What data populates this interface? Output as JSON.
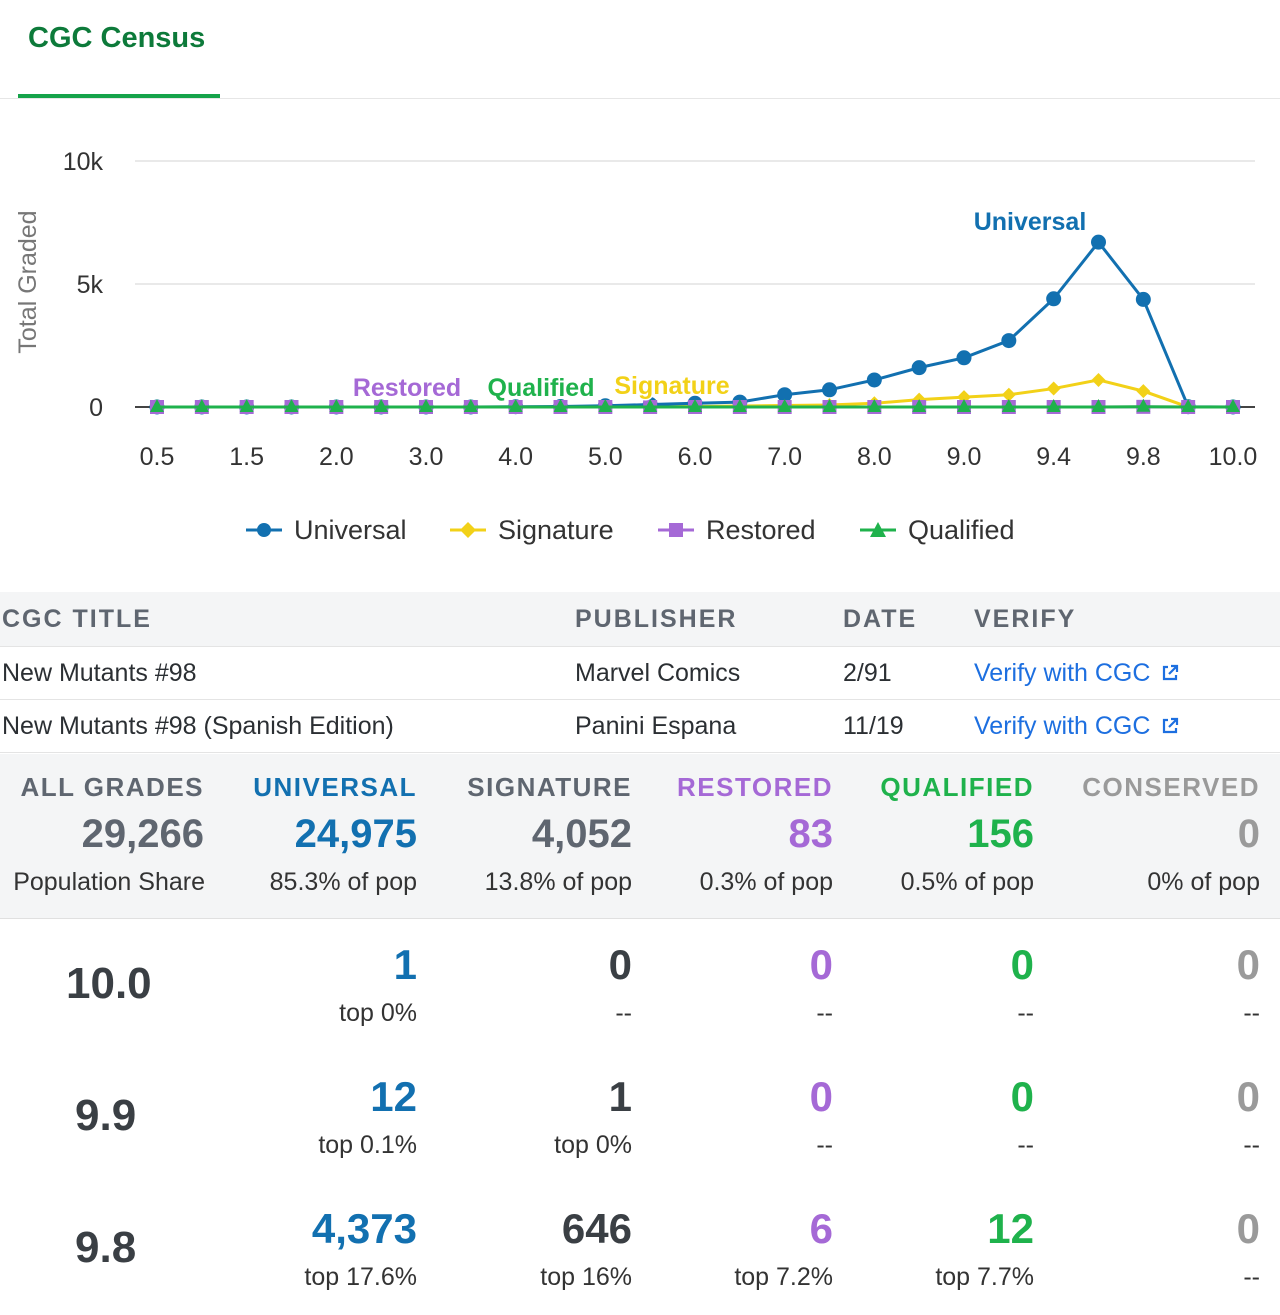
{
  "tab": {
    "label": "CGC Census"
  },
  "colors": {
    "universal": "#1270b0",
    "signature": "#f2d118",
    "restored": "#a569d6",
    "qualified": "#1fb24c",
    "conserved": "#9a9a9a",
    "dark": "#3a3f44"
  },
  "chart_data": {
    "type": "line",
    "ylabel": "Total Graded",
    "y_ticks": [
      "10k",
      "5k",
      "0"
    ],
    "ylim": [
      0,
      10000
    ],
    "x_tick_labels": [
      "0.5",
      "1.5",
      "2.0",
      "3.0",
      "4.0",
      "5.0",
      "6.0",
      "7.0",
      "8.0",
      "9.0",
      "9.4",
      "9.8",
      "10.0"
    ],
    "grades": [
      "0.5",
      "1.0",
      "1.5",
      "1.8",
      "2.0",
      "2.5",
      "3.0",
      "3.5",
      "4.0",
      "4.5",
      "5.0",
      "5.5",
      "6.0",
      "6.5",
      "7.0",
      "7.5",
      "8.0",
      "8.5",
      "9.0",
      "9.2",
      "9.4",
      "9.6",
      "9.8",
      "9.9",
      "10.0"
    ],
    "series": [
      {
        "name": "Universal",
        "values": [
          0,
          0,
          0,
          0,
          0,
          0,
          0,
          0,
          10,
          20,
          50,
          100,
          150,
          200,
          500,
          700,
          1100,
          1600,
          2000,
          2700,
          4400,
          6700,
          4373,
          12,
          1
        ]
      },
      {
        "name": "Signature",
        "values": [
          0,
          0,
          0,
          0,
          0,
          0,
          0,
          0,
          0,
          0,
          0,
          10,
          20,
          40,
          60,
          80,
          150,
          300,
          400,
          500,
          750,
          1100,
          646,
          1,
          0
        ]
      },
      {
        "name": "Restored",
        "values": [
          0,
          0,
          0,
          0,
          0,
          0,
          0,
          0,
          0,
          0,
          0,
          0,
          0,
          0,
          0,
          0,
          0,
          0,
          0,
          0,
          0,
          0,
          6,
          0,
          0
        ]
      },
      {
        "name": "Qualified",
        "values": [
          0,
          0,
          0,
          0,
          0,
          0,
          0,
          0,
          0,
          0,
          0,
          0,
          0,
          0,
          0,
          0,
          0,
          0,
          0,
          0,
          0,
          0,
          12,
          0,
          0
        ]
      }
    ],
    "annotations": [
      "Universal",
      "Restored",
      "Qualified",
      "Signature"
    ],
    "legend": {
      "placement": "bottom",
      "items": [
        "Universal",
        "Signature",
        "Restored",
        "Qualified"
      ]
    },
    "grid": true
  },
  "table": {
    "headers": {
      "title": "CGC TITLE",
      "publisher": "PUBLISHER",
      "date": "DATE",
      "verify": "VERIFY"
    },
    "rows": [
      {
        "title": "New Mutants #98",
        "publisher": "Marvel Comics",
        "date": "2/91",
        "verify": "Verify with CGC"
      },
      {
        "title": "New Mutants #98 (Spanish Edition)",
        "publisher": "Panini Espana",
        "date": "11/19",
        "verify": "Verify with CGC"
      }
    ]
  },
  "summary": {
    "all": {
      "label": "ALL GRADES",
      "value": "29,266",
      "sub": "Population Share"
    },
    "universal": {
      "label": "UNIVERSAL",
      "value": "24,975",
      "sub": "85.3% of pop"
    },
    "signature": {
      "label": "SIGNATURE",
      "value": "4,052",
      "sub": "13.8% of pop"
    },
    "restored": {
      "label": "RESTORED",
      "value": "83",
      "sub": "0.3% of pop"
    },
    "qualified": {
      "label": "QUALIFIED",
      "value": "156",
      "sub": "0.5% of pop"
    },
    "conserved": {
      "label": "CONSERVED",
      "value": "0",
      "sub": "0% of pop"
    }
  },
  "grades": [
    {
      "grade": "10.0",
      "universal": {
        "value": "1",
        "sub": "top 0%"
      },
      "signature": {
        "value": "0",
        "sub": "--"
      },
      "restored": {
        "value": "0",
        "sub": "--"
      },
      "qualified": {
        "value": "0",
        "sub": "--"
      },
      "conserved": {
        "value": "0",
        "sub": "--"
      }
    },
    {
      "grade": "9.9",
      "universal": {
        "value": "12",
        "sub": "top 0.1%"
      },
      "signature": {
        "value": "1",
        "sub": "top 0%"
      },
      "restored": {
        "value": "0",
        "sub": "--"
      },
      "qualified": {
        "value": "0",
        "sub": "--"
      },
      "conserved": {
        "value": "0",
        "sub": "--"
      }
    },
    {
      "grade": "9.8",
      "universal": {
        "value": "4,373",
        "sub": "top 17.6%"
      },
      "signature": {
        "value": "646",
        "sub": "top 16%"
      },
      "restored": {
        "value": "6",
        "sub": "top 7.2%"
      },
      "qualified": {
        "value": "12",
        "sub": "top 7.7%"
      },
      "conserved": {
        "value": "0",
        "sub": "--"
      }
    }
  ]
}
